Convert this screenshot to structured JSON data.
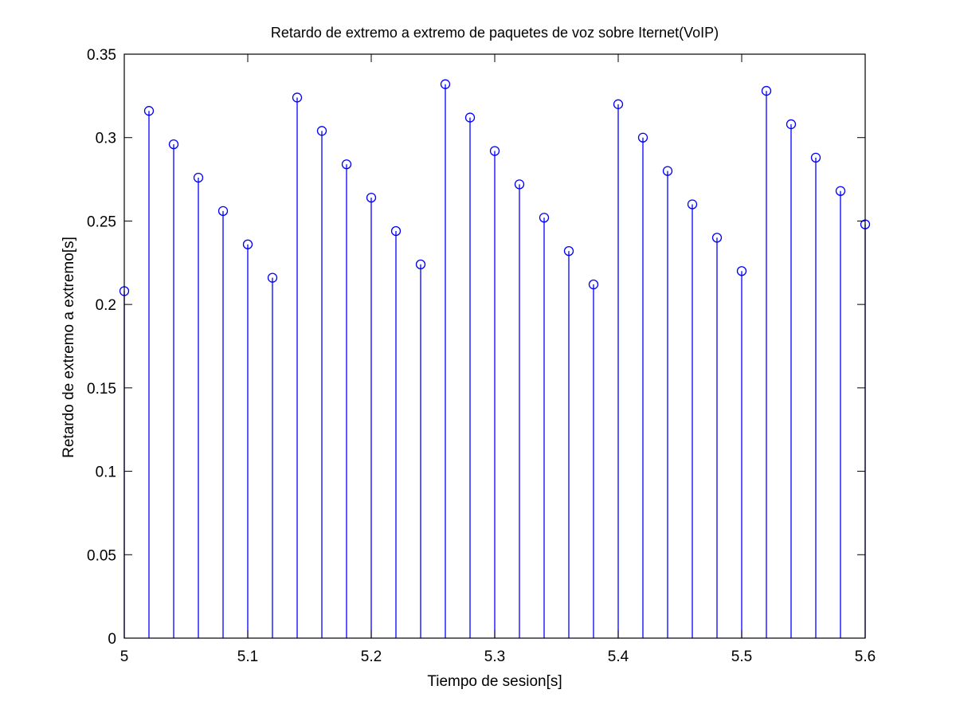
{
  "chart_data": {
    "type": "stem",
    "title": "Retardo de extremo a extremo de paquetes de voz sobre Iternet(VoIP)",
    "xlabel": "Tiempo de sesion[s]",
    "ylabel": "Retardo de extremo a extremo[s]",
    "xlim": [
      5,
      5.6
    ],
    "ylim": [
      0,
      0.35
    ],
    "xticks": [
      5,
      5.1,
      5.2,
      5.3,
      5.4,
      5.5,
      5.6
    ],
    "xtick_labels": [
      "5",
      "5.1",
      "5.2",
      "5.3",
      "5.4",
      "5.5",
      "5.6"
    ],
    "yticks": [
      0,
      0.05,
      0.1,
      0.15,
      0.2,
      0.25,
      0.3,
      0.35
    ],
    "ytick_labels": [
      "0",
      "0.05",
      "0.1",
      "0.15",
      "0.2",
      "0.25",
      "0.3",
      "0.35"
    ],
    "grid": false,
    "marker": "circle",
    "color": "#0000ff",
    "x": [
      5.0,
      5.02,
      5.04,
      5.06,
      5.08,
      5.1,
      5.12,
      5.14,
      5.16,
      5.18,
      5.2,
      5.22,
      5.24,
      5.26,
      5.28,
      5.3,
      5.32,
      5.34,
      5.36,
      5.38,
      5.4,
      5.42,
      5.44,
      5.46,
      5.48,
      5.5,
      5.52,
      5.54,
      5.56,
      5.58,
      5.6
    ],
    "y": [
      0.208,
      0.316,
      0.296,
      0.276,
      0.256,
      0.236,
      0.216,
      0.324,
      0.304,
      0.284,
      0.264,
      0.244,
      0.224,
      0.332,
      0.312,
      0.292,
      0.272,
      0.252,
      0.232,
      0.212,
      0.32,
      0.3,
      0.28,
      0.26,
      0.24,
      0.22,
      0.328,
      0.308,
      0.288,
      0.268,
      0.248
    ]
  }
}
